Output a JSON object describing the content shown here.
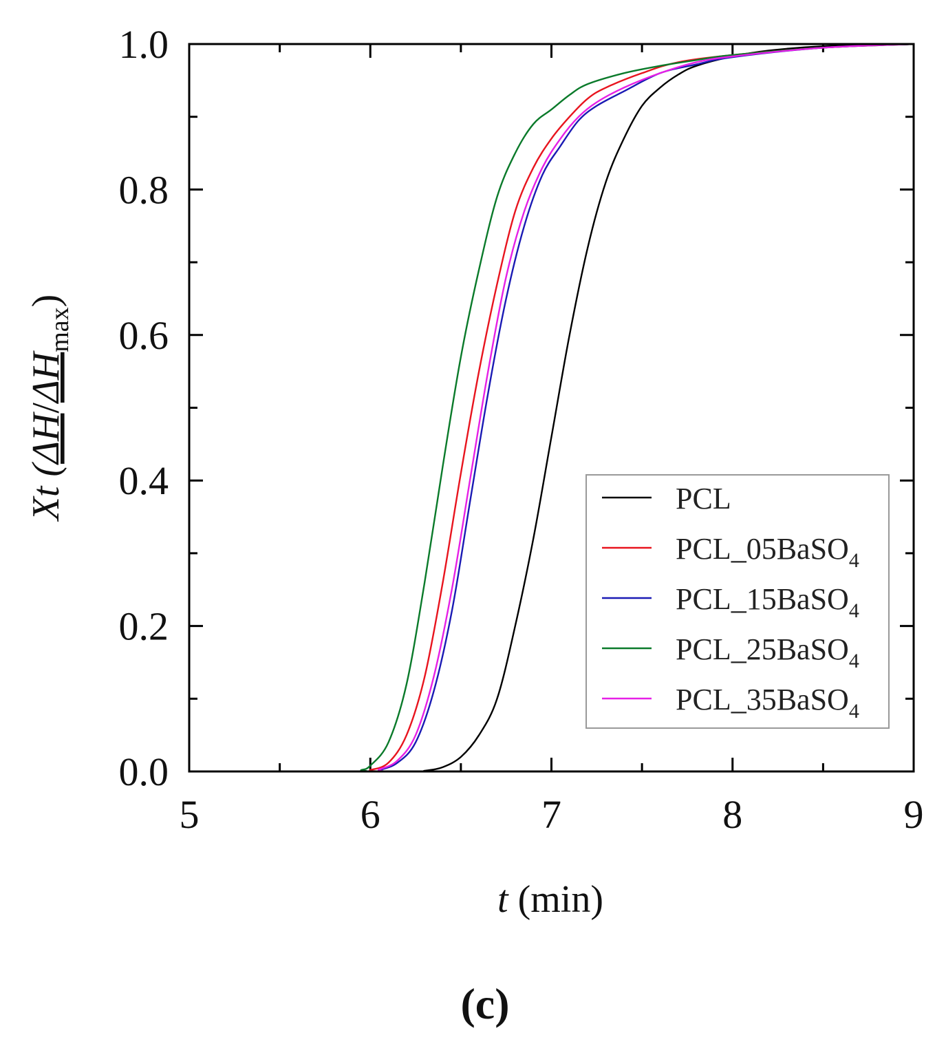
{
  "chart_data": {
    "type": "line",
    "title": "",
    "panel_label": "(c)",
    "xlabel": {
      "italic": "t",
      "rest": " (min)"
    },
    "ylabel": {
      "prefix": "Xt (",
      "dh1": "ΔH",
      "slash": "/",
      "dh2": "ΔH",
      "sub": "max",
      "suffix": ")"
    },
    "xlim": [
      5,
      9
    ],
    "ylim": [
      0,
      1
    ],
    "xticks": [
      5,
      6,
      7,
      8,
      9
    ],
    "yticks": [
      0.0,
      0.2,
      0.4,
      0.6,
      0.8,
      1.0
    ],
    "ytick_labels": [
      "0.0",
      "0.2",
      "0.4",
      "0.6",
      "0.8",
      "1.0"
    ],
    "legend_position": "bottom-right",
    "series": [
      {
        "name": "PCL",
        "legend_label": "PCL",
        "legend_sub": "",
        "color": "#000000",
        "points": [
          [
            5,
            0
          ],
          [
            6.2,
            0
          ],
          [
            6.3,
            0.001
          ],
          [
            6.4,
            0.006
          ],
          [
            6.5,
            0.02
          ],
          [
            6.6,
            0.05
          ],
          [
            6.7,
            0.1
          ],
          [
            6.8,
            0.2
          ],
          [
            6.9,
            0.32
          ],
          [
            7.0,
            0.46
          ],
          [
            7.1,
            0.6
          ],
          [
            7.2,
            0.72
          ],
          [
            7.3,
            0.81
          ],
          [
            7.4,
            0.87
          ],
          [
            7.5,
            0.915
          ],
          [
            7.6,
            0.94
          ],
          [
            7.7,
            0.958
          ],
          [
            7.8,
            0.97
          ],
          [
            8.0,
            0.983
          ],
          [
            8.2,
            0.991
          ],
          [
            8.5,
            0.997
          ],
          [
            9,
            1.0
          ]
        ]
      },
      {
        "name": "PCL_05BaSO4",
        "legend_label": "PCL_05BaSO",
        "legend_sub": "4",
        "color": "#e8141e",
        "points": [
          [
            5,
            0
          ],
          [
            5.95,
            0
          ],
          [
            6.0,
            0.002
          ],
          [
            6.1,
            0.012
          ],
          [
            6.2,
            0.05
          ],
          [
            6.3,
            0.13
          ],
          [
            6.4,
            0.26
          ],
          [
            6.5,
            0.41
          ],
          [
            6.6,
            0.55
          ],
          [
            6.7,
            0.67
          ],
          [
            6.8,
            0.77
          ],
          [
            6.9,
            0.83
          ],
          [
            7.0,
            0.87
          ],
          [
            7.1,
            0.9
          ],
          [
            7.2,
            0.925
          ],
          [
            7.3,
            0.94
          ],
          [
            7.5,
            0.96
          ],
          [
            7.7,
            0.975
          ],
          [
            8.0,
            0.985
          ],
          [
            8.5,
            0.995
          ],
          [
            9,
            1.0
          ]
        ]
      },
      {
        "name": "PCL_15BaSO4",
        "legend_label": "PCL_15BaSO",
        "legend_sub": "4",
        "color": "#1a1ab4",
        "points": [
          [
            5,
            0
          ],
          [
            5.98,
            0
          ],
          [
            6.05,
            0.002
          ],
          [
            6.15,
            0.012
          ],
          [
            6.25,
            0.04
          ],
          [
            6.35,
            0.11
          ],
          [
            6.45,
            0.22
          ],
          [
            6.55,
            0.37
          ],
          [
            6.65,
            0.52
          ],
          [
            6.75,
            0.65
          ],
          [
            6.85,
            0.75
          ],
          [
            6.95,
            0.82
          ],
          [
            7.05,
            0.86
          ],
          [
            7.15,
            0.895
          ],
          [
            7.25,
            0.915
          ],
          [
            7.4,
            0.935
          ],
          [
            7.6,
            0.96
          ],
          [
            7.8,
            0.972
          ],
          [
            8.0,
            0.982
          ],
          [
            8.5,
            0.995
          ],
          [
            9,
            1.0
          ]
        ]
      },
      {
        "name": "PCL_25BaSO4",
        "legend_label": "PCL_25BaSO",
        "legend_sub": "4",
        "color": "#0a7a2a",
        "points": [
          [
            5,
            0
          ],
          [
            5.9,
            0
          ],
          [
            5.95,
            0.002
          ],
          [
            6.0,
            0.008
          ],
          [
            6.1,
            0.04
          ],
          [
            6.2,
            0.12
          ],
          [
            6.3,
            0.26
          ],
          [
            6.4,
            0.42
          ],
          [
            6.5,
            0.57
          ],
          [
            6.6,
            0.69
          ],
          [
            6.7,
            0.79
          ],
          [
            6.8,
            0.85
          ],
          [
            6.9,
            0.89
          ],
          [
            7.0,
            0.91
          ],
          [
            7.1,
            0.93
          ],
          [
            7.2,
            0.945
          ],
          [
            7.4,
            0.96
          ],
          [
            7.6,
            0.97
          ],
          [
            7.8,
            0.978
          ],
          [
            8.0,
            0.985
          ],
          [
            8.5,
            0.995
          ],
          [
            9,
            1.0
          ]
        ]
      },
      {
        "name": "PCL_35BaSO4",
        "legend_label": "PCL_35BaSO",
        "legend_sub": "4",
        "color": "#e620e6",
        "points": [
          [
            5,
            0
          ],
          [
            5.97,
            0
          ],
          [
            6.05,
            0.003
          ],
          [
            6.15,
            0.015
          ],
          [
            6.25,
            0.05
          ],
          [
            6.35,
            0.13
          ],
          [
            6.45,
            0.25
          ],
          [
            6.55,
            0.4
          ],
          [
            6.65,
            0.55
          ],
          [
            6.75,
            0.68
          ],
          [
            6.85,
            0.77
          ],
          [
            6.95,
            0.83
          ],
          [
            7.05,
            0.87
          ],
          [
            7.15,
            0.9
          ],
          [
            7.25,
            0.92
          ],
          [
            7.4,
            0.94
          ],
          [
            7.6,
            0.96
          ],
          [
            7.8,
            0.975
          ],
          [
            8.0,
            0.983
          ],
          [
            8.5,
            0.995
          ],
          [
            9,
            1.0
          ]
        ]
      }
    ]
  }
}
